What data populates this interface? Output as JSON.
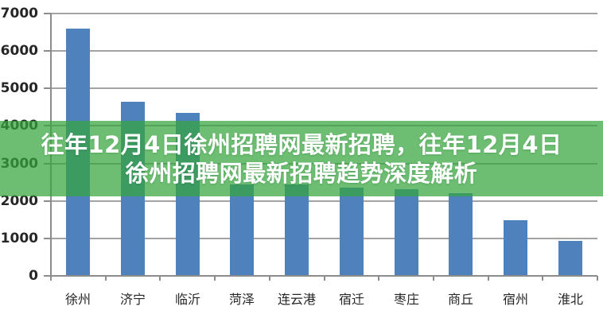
{
  "overlay": {
    "band_color": "rgba(53,165,60,0.72)",
    "text_color": "#ffffff",
    "title_line1": "往年12月4日徐州招聘网最新招聘，往年12月4日",
    "title_line2": "徐州招聘网最新招聘趋势深度解析"
  },
  "chart_data": {
    "type": "bar",
    "title": "",
    "categories": [
      "徐州",
      "济宁",
      "临沂",
      "菏泽",
      "连云港",
      "宿迁",
      "枣庄",
      "商丘",
      "宿州",
      "淮北"
    ],
    "values": [
      6600,
      4650,
      4340,
      2430,
      2430,
      2360,
      2320,
      2210,
      1490,
      930
    ],
    "xlabel": "",
    "ylabel": "",
    "ylim": [
      0,
      7000
    ],
    "yticks": [
      0,
      1000,
      2000,
      3000,
      4000,
      5000,
      6000,
      7000
    ],
    "grid": true,
    "legend": false,
    "bar_color": "#4f81bd",
    "grid_color": "#a3a3a3",
    "axis_color": "#8c8c8c",
    "label_color": "#262626",
    "background": "#ffffff"
  }
}
